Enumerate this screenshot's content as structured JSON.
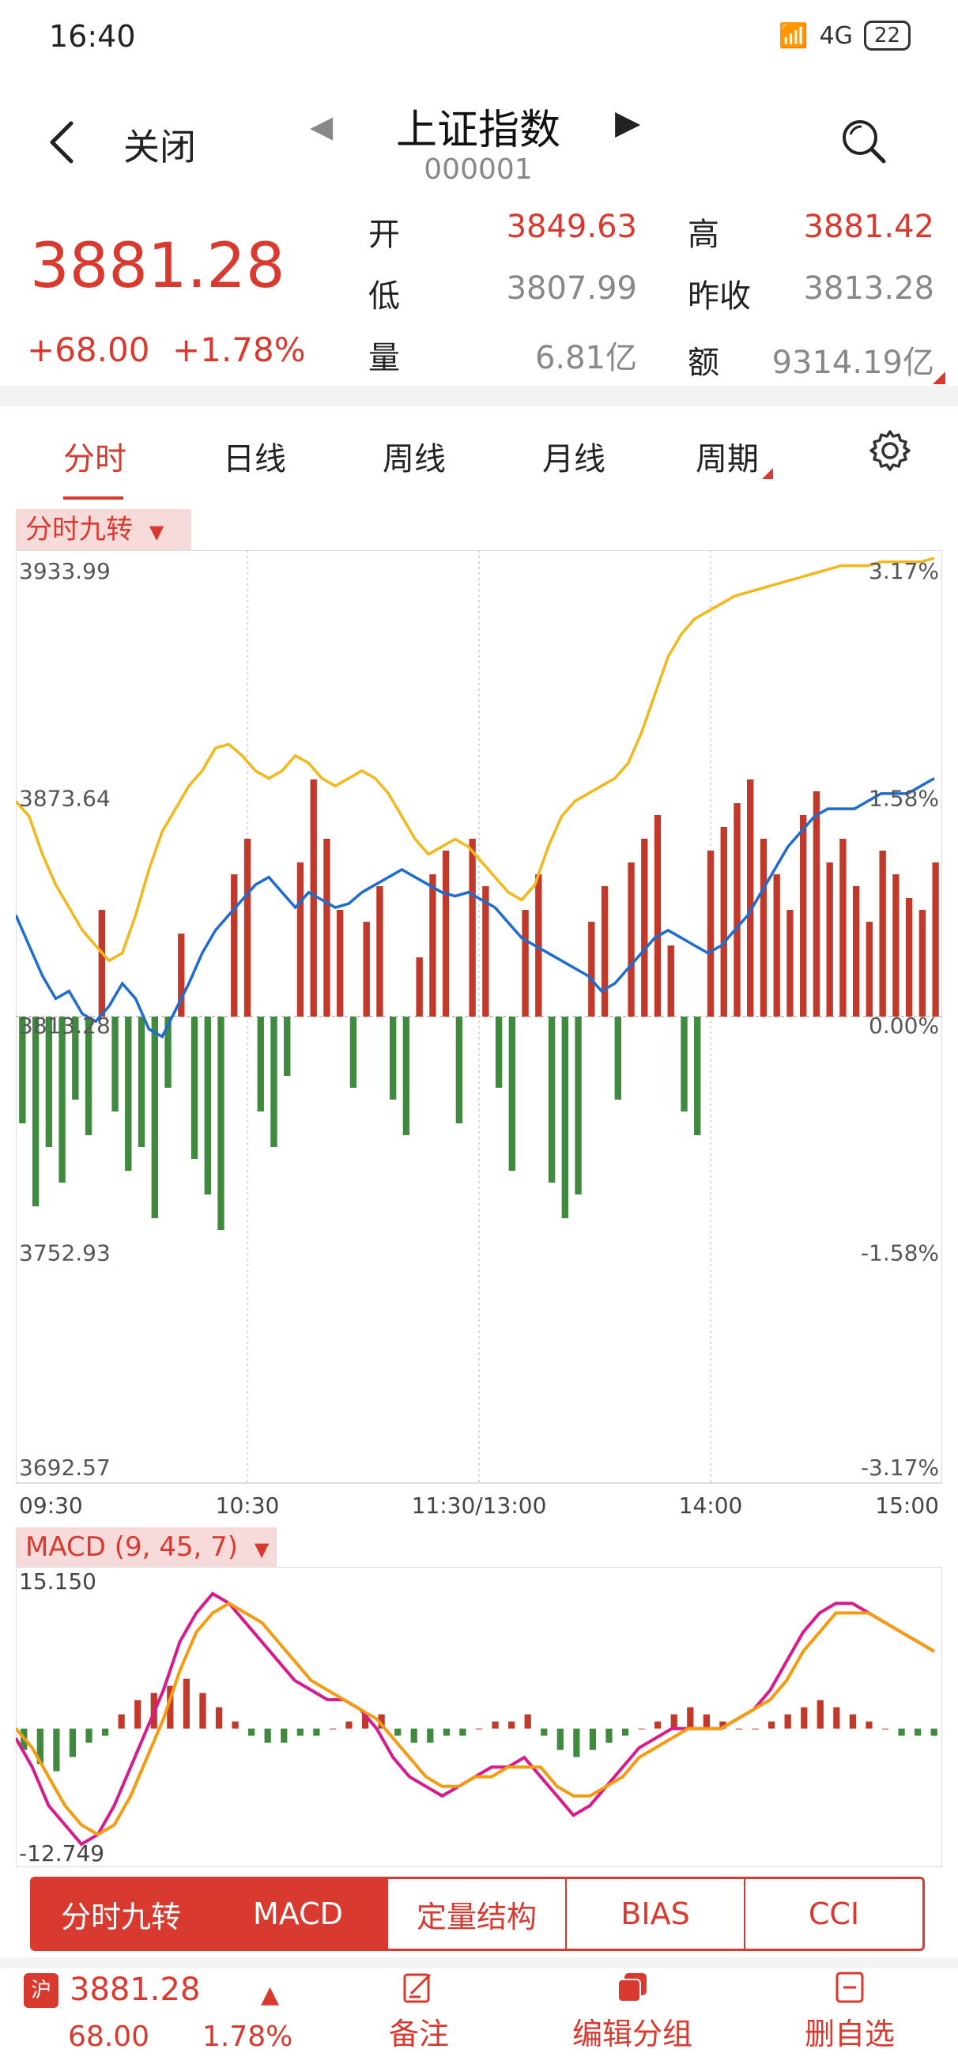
{
  "status": {
    "time": "16:40",
    "battery": "22",
    "net": "4G"
  },
  "nav": {
    "back_label": "关闭",
    "title": "上证指数",
    "code": "000001"
  },
  "quote": {
    "price": "3881.28",
    "change": "+68.00",
    "change_pct": "+1.78%",
    "fields": [
      {
        "label": "开",
        "value": "3849.63",
        "color": "#d93a2f"
      },
      {
        "label": "高",
        "value": "3881.42",
        "color": "#d93a2f"
      },
      {
        "label": "低",
        "value": "3807.99",
        "color": "#888888"
      },
      {
        "label": "昨收",
        "value": "3813.28",
        "color": "#888888"
      },
      {
        "label": "量",
        "value": "6.81亿",
        "color": "#888888"
      },
      {
        "label": "额",
        "value": "9314.19亿",
        "color": "#888888"
      }
    ]
  },
  "tabs": [
    "分时",
    "日线",
    "周线",
    "月线",
    "周期"
  ],
  "tags": {
    "main": "分时九转",
    "macd": "MACD (9, 45, 7)"
  },
  "indicator_tabs": [
    "分时九转",
    "MACD",
    "定量结构",
    "BIAS",
    "CCI"
  ],
  "bottom": {
    "market": "沪",
    "price": "3881.28",
    "change": "68.00",
    "change_pct": "1.78%",
    "actions": [
      "备注",
      "编辑分组",
      "删自选"
    ]
  },
  "colors": {
    "accent": "#d93a2f",
    "price_line": "#1f6ccf",
    "avg_line": "#f2b81b",
    "up_bar": "#c0392b",
    "down_bar": "#3f8a3f",
    "dif": "#d81b8c",
    "dea": "#f39c12"
  },
  "chart_data": [
    {
      "type": "line",
      "title": "分时九转",
      "x_ticks": [
        "09:30",
        "10:30",
        "11:30/13:00",
        "14:00",
        "15:00"
      ],
      "y_left_ticks": [
        "3933.99",
        "3873.64",
        "3813.28",
        "3752.93",
        "3692.57"
      ],
      "y_right_ticks": [
        "3.17%",
        "1.58%",
        "0.00%",
        "-1.58%",
        "-3.17%"
      ],
      "ylim": [
        3692.57,
        3933.99
      ],
      "prev_close": 3813.28,
      "series": [
        {
          "name": "price",
          "values": [
            3840,
            3832,
            3824,
            3818,
            3820,
            3814,
            3812,
            3816,
            3822,
            3818,
            3810,
            3808,
            3815,
            3822,
            3830,
            3836,
            3840,
            3844,
            3848,
            3850,
            3846,
            3842,
            3846,
            3844,
            3842,
            3843,
            3846,
            3848,
            3850,
            3852,
            3850,
            3848,
            3846,
            3845,
            3846,
            3844,
            3842,
            3838,
            3834,
            3832,
            3830,
            3828,
            3826,
            3824,
            3820,
            3822,
            3826,
            3830,
            3834,
            3836,
            3834,
            3832,
            3830,
            3832,
            3836,
            3840,
            3846,
            3852,
            3858,
            3862,
            3866,
            3868,
            3868,
            3868,
            3870,
            3872,
            3872,
            3872,
            3874,
            3876
          ]
        },
        {
          "name": "avg",
          "values": [
            3870,
            3866,
            3856,
            3848,
            3842,
            3836,
            3832,
            3828,
            3830,
            3840,
            3852,
            3862,
            3868,
            3874,
            3878,
            3884,
            3885,
            3882,
            3878,
            3876,
            3878,
            3882,
            3880,
            3876,
            3874,
            3876,
            3878,
            3876,
            3872,
            3866,
            3860,
            3856,
            3858,
            3860,
            3858,
            3854,
            3850,
            3846,
            3844,
            3848,
            3858,
            3866,
            3870,
            3872,
            3874,
            3876,
            3880,
            3888,
            3898,
            3908,
            3914,
            3918,
            3920,
            3922,
            3924,
            3925,
            3926,
            3927,
            3928,
            3929,
            3930,
            3931,
            3932,
            3932,
            3932,
            3933,
            3933,
            3933,
            3933,
            3934
          ]
        }
      ],
      "bars": [
        -18,
        -32,
        -22,
        -28,
        -14,
        -20,
        18,
        -16,
        -26,
        -22,
        -34,
        -12,
        14,
        -24,
        -30,
        -36,
        24,
        30,
        -16,
        -22,
        -10,
        26,
        40,
        30,
        18,
        -12,
        16,
        22,
        -14,
        -20,
        10,
        24,
        28,
        -18,
        30,
        22,
        -12,
        -26,
        18,
        24,
        -28,
        -34,
        -30,
        16,
        22,
        -14,
        26,
        30,
        34,
        12,
        -16,
        -20,
        28,
        32,
        36,
        40,
        30,
        24,
        18,
        34,
        38,
        26,
        30,
        22,
        16,
        28,
        24,
        20,
        18,
        26
      ]
    },
    {
      "type": "line",
      "title": "MACD (9, 45, 7)",
      "ylim": [
        -12.749,
        15.15
      ],
      "y_ticks": [
        "15.150",
        "-12.749"
      ],
      "series": [
        {
          "name": "DIF",
          "values": [
            -1,
            -4,
            -8,
            -10,
            -12,
            -11,
            -8,
            -4,
            0,
            4,
            9,
            12,
            14,
            13,
            11,
            9,
            7,
            5,
            4,
            3,
            3,
            2,
            0,
            -3,
            -5,
            -6,
            -7,
            -6,
            -5,
            -4,
            -4,
            -3,
            -5,
            -7,
            -9,
            -8,
            -6,
            -4,
            -2,
            -1,
            0,
            0,
            0,
            0,
            1,
            2,
            4,
            7,
            10,
            12,
            13,
            13,
            12,
            11,
            10,
            9,
            8
          ]
        },
        {
          "name": "DEA",
          "values": [
            0,
            -2,
            -5,
            -8,
            -10,
            -11,
            -10,
            -7,
            -3,
            1,
            6,
            10,
            12,
            13,
            12,
            11,
            9,
            7,
            5,
            4,
            3,
            2,
            1,
            -1,
            -3,
            -5,
            -6,
            -6,
            -5,
            -5,
            -4,
            -4,
            -4,
            -6,
            -7,
            -7,
            -6,
            -5,
            -3,
            -2,
            -1,
            0,
            0,
            0,
            1,
            2,
            3,
            5,
            8,
            10,
            12,
            12,
            12,
            11,
            10,
            9,
            8
          ]
        }
      ],
      "bars": [
        -3,
        -5,
        -6,
        -4,
        -2,
        -1,
        2,
        4,
        5,
        6,
        7,
        5,
        3,
        1,
        -1,
        -2,
        -2,
        -1,
        -1,
        0,
        1,
        2,
        2,
        -1,
        -2,
        -2,
        -1,
        -1,
        0,
        1,
        1,
        2,
        -1,
        -3,
        -4,
        -3,
        -2,
        -1,
        0,
        1,
        2,
        3,
        2,
        1,
        0,
        0,
        1,
        2,
        3,
        4,
        3,
        2,
        1,
        0,
        -1,
        -1,
        -1
      ]
    }
  ]
}
